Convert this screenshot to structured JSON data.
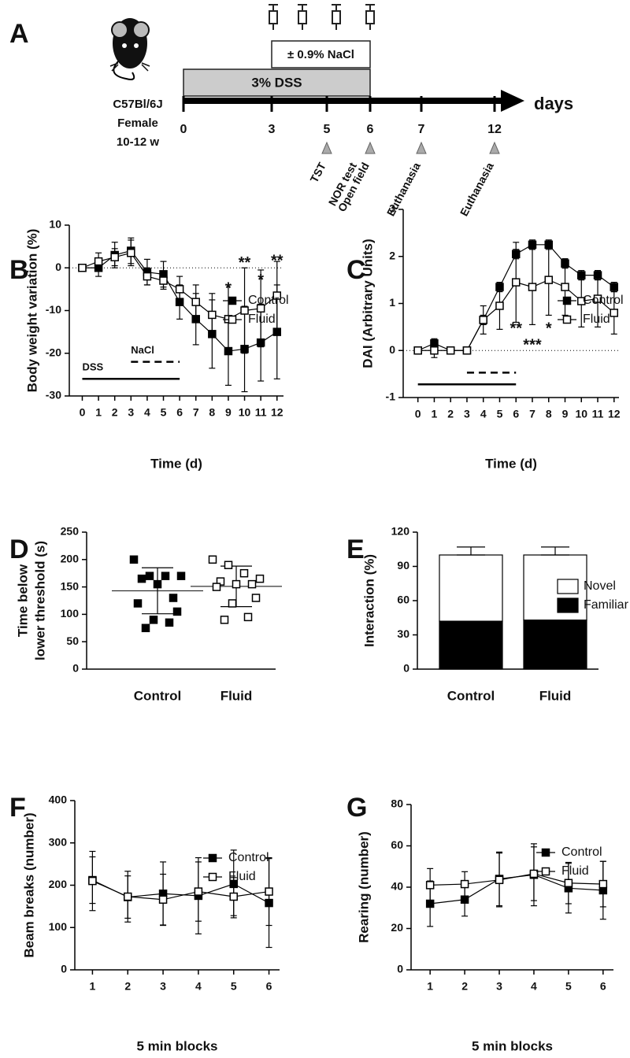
{
  "timeline": {
    "panel": "A",
    "strain": [
      "C57Bl/6J",
      "Female",
      "10-12 w"
    ],
    "unit": "days",
    "days": [
      0,
      3,
      5,
      6,
      7,
      12
    ],
    "treatments": [
      {
        "label": "3% DSS",
        "start": 0,
        "end": 6
      },
      {
        "label": "± 0.9% NaCl",
        "start": 3,
        "end": 6
      }
    ],
    "events": [
      {
        "day": 5,
        "labels": [
          "TST"
        ]
      },
      {
        "day": 6,
        "labels": [
          "NOR test",
          "Open field"
        ]
      },
      {
        "day": 7,
        "labels": [
          "Euthanasia"
        ]
      },
      {
        "day": 12,
        "labels": [
          "Euthanasia"
        ]
      }
    ]
  },
  "chart_data": [
    {
      "type": "line",
      "panel": "B",
      "xlabel": "Time (d)",
      "ylabel": "Body weight variation (%)",
      "x": [
        0,
        1,
        2,
        3,
        4,
        5,
        6,
        7,
        8,
        9,
        10,
        11,
        12
      ],
      "xlim": [
        -0.8,
        12.4
      ],
      "xticks": [
        0,
        1,
        2,
        3,
        4,
        5,
        6,
        7,
        8,
        9,
        10,
        11,
        12
      ],
      "ylim": [
        -30,
        10
      ],
      "yticks": [
        -30,
        -20,
        -10,
        0,
        10
      ],
      "hline": 0,
      "series": [
        {
          "name": "Control",
          "color": "#000000",
          "values": [
            0,
            0,
            3,
            4,
            -1,
            -1.5,
            -8,
            -12,
            -15.5,
            -19.5,
            -19,
            -17.5,
            -15
          ],
          "errors": [
            0,
            2,
            3,
            3,
            3,
            3,
            4,
            6,
            8,
            8,
            10,
            9,
            11
          ]
        },
        {
          "name": "Fluid",
          "color": "#ffffff",
          "values": [
            0,
            1.5,
            2.5,
            3.5,
            -2,
            -3,
            -5,
            -8,
            -11,
            -12,
            -10,
            -9.5,
            -6.5
          ],
          "errors": [
            0,
            2,
            2,
            3,
            2,
            2,
            3,
            4,
            5,
            8,
            10,
            9,
            8
          ]
        }
      ],
      "annotations": [
        {
          "x": 9,
          "y": -5,
          "text": "*"
        },
        {
          "x": 10,
          "y": 1,
          "text": "**"
        },
        {
          "x": 11,
          "y": -3,
          "text": "*"
        },
        {
          "x": 12,
          "y": 1.5,
          "text": "**"
        }
      ],
      "treatments": [
        {
          "label": "DSS",
          "start": 0,
          "end": 6,
          "y": -26,
          "dashed": false
        },
        {
          "label": "NaCl",
          "start": 3,
          "end": 6,
          "y": -22,
          "dashed": true
        }
      ]
    },
    {
      "type": "line",
      "panel": "C",
      "xlabel": "Time (d)",
      "ylabel": "DAI (Arbitrary Units)",
      "x": [
        0,
        1,
        2,
        3,
        4,
        5,
        6,
        7,
        8,
        9,
        10,
        11,
        12
      ],
      "xlim": [
        -0.9,
        12.3
      ],
      "xticks": [
        0,
        1,
        2,
        3,
        4,
        5,
        6,
        7,
        8,
        9,
        10,
        11,
        12
      ],
      "ylim": [
        -1,
        3
      ],
      "yticks": [
        -1,
        0,
        1,
        2,
        3
      ],
      "hline": 0,
      "series": [
        {
          "name": "Control",
          "color": "#000000",
          "values": [
            0,
            0.15,
            0,
            0,
            0.65,
            1.35,
            2.05,
            2.25,
            2.25,
            1.85,
            1.6,
            1.6,
            1.35
          ],
          "errors": [
            0,
            0.1,
            0,
            0,
            0.1,
            0.1,
            0.1,
            0.1,
            0.1,
            0.1,
            0.1,
            0.1,
            0.1
          ]
        },
        {
          "name": "Fluid",
          "color": "#ffffff",
          "values": [
            0,
            0,
            0,
            0,
            0.65,
            0.95,
            1.45,
            1.35,
            1.5,
            1.35,
            1.05,
            1.1,
            0.8
          ],
          "errors": [
            0,
            0.15,
            0.05,
            0.05,
            0.3,
            0.5,
            0.85,
            0.8,
            0.75,
            0.6,
            0.55,
            0.6,
            0.45
          ]
        }
      ],
      "annotations": [
        {
          "x": 6,
          "y": 0.45,
          "text": "**"
        },
        {
          "x": 7,
          "y": 0.1,
          "text": "***"
        },
        {
          "x": 8,
          "y": 0.45,
          "text": "*"
        }
      ],
      "treatments": [
        {
          "start": 0,
          "end": 6,
          "y": -0.72,
          "dashed": false
        },
        {
          "start": 3,
          "end": 6,
          "y": -0.47,
          "dashed": true
        }
      ]
    },
    {
      "type": "dot",
      "panel": "D",
      "ylabel": [
        "Time below",
        "lower threshold (s)"
      ],
      "categories": [
        "Control",
        "Fluid"
      ],
      "ylim": [
        0,
        250
      ],
      "yticks": [
        0,
        50,
        100,
        150,
        200,
        250
      ],
      "colors": [
        "#000000",
        "#ffffff"
      ],
      "values": [
        [
          200,
          170,
          170,
          170,
          165,
          155,
          130,
          120,
          105,
          90,
          85,
          75
        ],
        [
          200,
          190,
          175,
          165,
          160,
          155,
          155,
          150,
          130,
          120,
          95,
          90
        ]
      ],
      "means": [
        143,
        151
      ],
      "sd": [
        42,
        37
      ]
    },
    {
      "type": "stacked_bar",
      "panel": "E",
      "ylabel": "Interaction (%)",
      "categories": [
        "Control",
        "Fluid"
      ],
      "ylim": [
        0,
        120
      ],
      "yticks": [
        0,
        30,
        60,
        90,
        120
      ],
      "series": [
        {
          "name": "Familiar",
          "color": "#000000",
          "values": [
            42,
            43
          ],
          "errors": [
            7,
            7
          ]
        },
        {
          "name": "Novel",
          "color": "#ffffff",
          "values": [
            58,
            57
          ],
          "errors": [
            7,
            7
          ]
        }
      ]
    },
    {
      "type": "line",
      "panel": "F",
      "xlabel": "5 min blocks",
      "ylabel": "Beam breaks (number)",
      "x": [
        1,
        2,
        3,
        4,
        5,
        6
      ],
      "xlim": [
        0.5,
        6.3
      ],
      "xticks": [
        1,
        2,
        3,
        4,
        5,
        6
      ],
      "ylim": [
        0,
        400
      ],
      "yticks": [
        0,
        100,
        200,
        300,
        400
      ],
      "series": [
        {
          "name": "Control",
          "color": "#000000",
          "values": [
            212,
            172,
            180,
            175,
            203,
            158
          ],
          "errors": [
            55,
            50,
            75,
            90,
            80,
            105
          ]
        },
        {
          "name": "Fluid",
          "color": "#ffffff",
          "values": [
            210,
            173,
            166,
            185,
            173,
            185
          ],
          "errors": [
            70,
            60,
            60,
            70,
            45,
            80
          ]
        }
      ]
    },
    {
      "type": "line",
      "panel": "G",
      "xlabel": "5 min blocks",
      "ylabel": "Rearing (number)",
      "x": [
        1,
        2,
        3,
        4,
        5,
        6
      ],
      "xlim": [
        0.45,
        6.3
      ],
      "xticks": [
        1,
        2,
        3,
        4,
        5,
        6
      ],
      "ylim": [
        0,
        80
      ],
      "yticks": [
        0,
        20,
        40,
        60,
        80
      ],
      "series": [
        {
          "name": "Control",
          "color": "#000000",
          "values": [
            32,
            34,
            44,
            46,
            39.5,
            38.5
          ],
          "errors": [
            11,
            8,
            13,
            15,
            12,
            14
          ]
        },
        {
          "name": "Fluid",
          "color": "#ffffff",
          "values": [
            41,
            41.5,
            43.5,
            46.5,
            42,
            41.5
          ],
          "errors": [
            8,
            6,
            13,
            13,
            10,
            11
          ]
        }
      ]
    }
  ]
}
